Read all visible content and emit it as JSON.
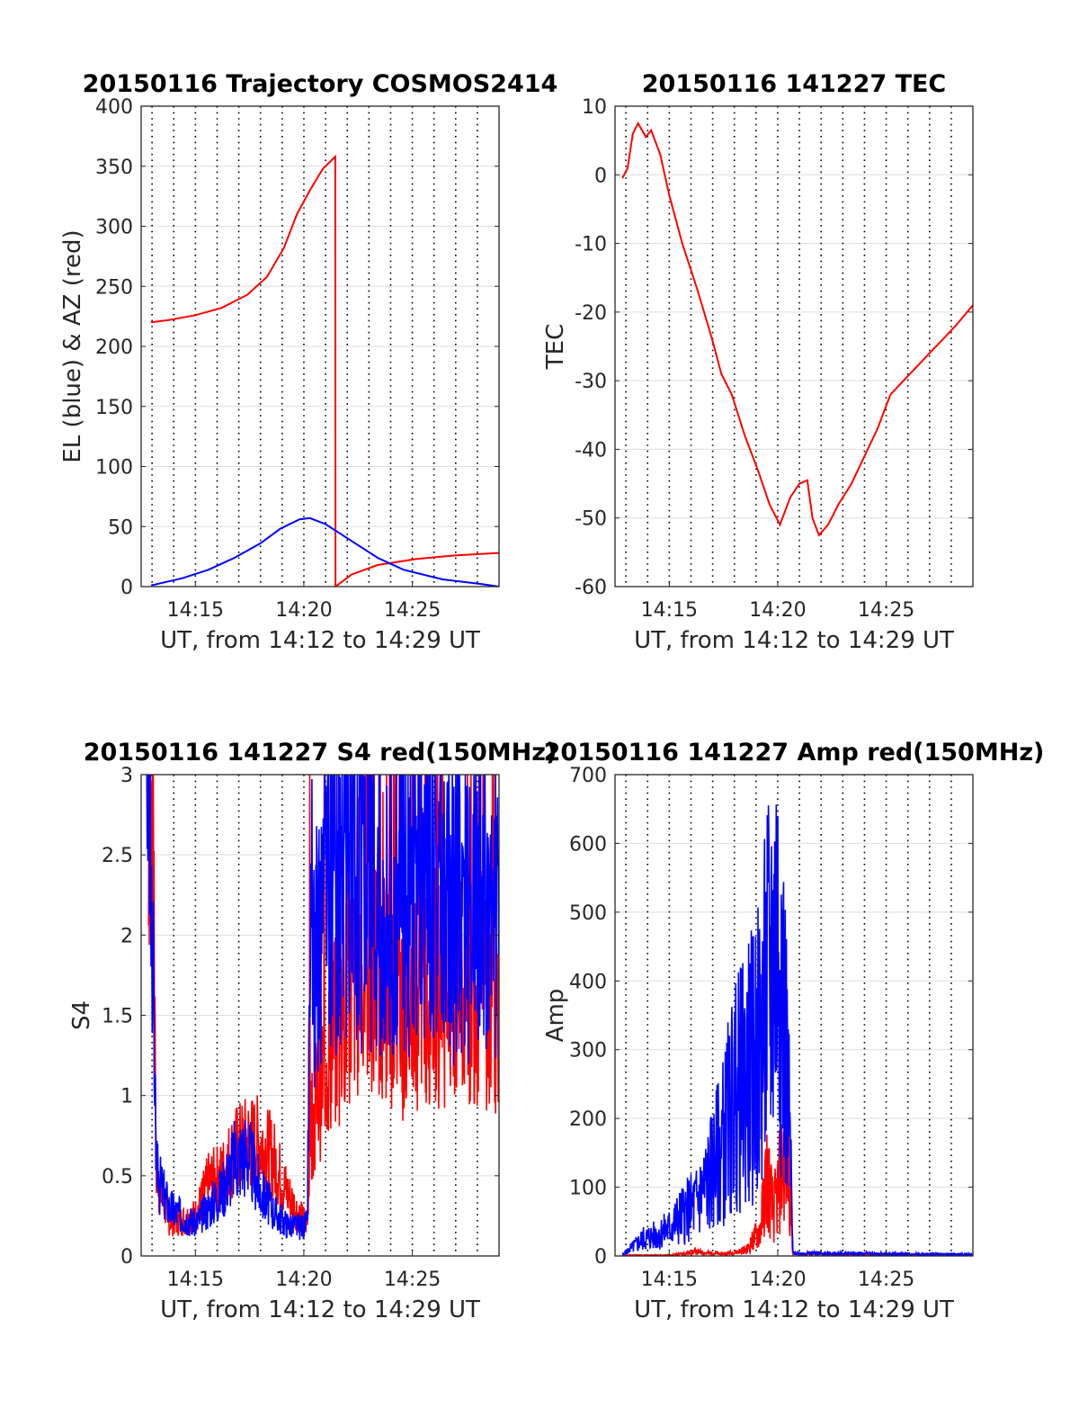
{
  "colors": {
    "red": "#ff0000",
    "blue": "#0000ff",
    "grid": "#dddddd",
    "vgrid": "#000000",
    "axis": "#262626"
  },
  "chart_data": [
    {
      "type": "line",
      "title": "20150116 Trajectory COSMOS2414",
      "xlabel": "UT, from 14:12 to 14:29 UT",
      "ylabel": "EL (blue) & AZ (red)",
      "xlim": [
        14.2083,
        14.4833
      ],
      "ylim": [
        0,
        400
      ],
      "yticks": [
        0,
        50,
        100,
        150,
        200,
        250,
        300,
        350,
        400
      ],
      "xticks": [
        {
          "value": 14.25,
          "label": "14:15"
        },
        {
          "value": 14.3333,
          "label": "14:20"
        },
        {
          "value": 14.4167,
          "label": "14:25"
        }
      ],
      "grid": "on",
      "series": [
        {
          "color": "red",
          "kind": "smooth",
          "points": [
            [
              14.216,
              220
            ],
            [
              14.23,
              222
            ],
            [
              14.25,
              226
            ],
            [
              14.27,
              232
            ],
            [
              14.29,
              243
            ],
            [
              14.305,
              258
            ],
            [
              14.318,
              282
            ],
            [
              14.328,
              310
            ],
            [
              14.338,
              330
            ],
            [
              14.348,
              348
            ],
            [
              14.3575,
              358
            ],
            [
              14.3576,
              0
            ],
            [
              14.37,
              10
            ],
            [
              14.39,
              18
            ],
            [
              14.42,
              23
            ],
            [
              14.45,
              26
            ],
            [
              14.4833,
              28
            ]
          ]
        },
        {
          "color": "blue",
          "kind": "smooth",
          "points": [
            [
              14.216,
              1
            ],
            [
              14.24,
              7
            ],
            [
              14.26,
              14
            ],
            [
              14.28,
              24
            ],
            [
              14.3,
              36
            ],
            [
              14.315,
              48
            ],
            [
              14.33,
              56
            ],
            [
              14.338,
              57
            ],
            [
              14.35,
              52
            ],
            [
              14.37,
              38
            ],
            [
              14.39,
              24
            ],
            [
              14.41,
              14
            ],
            [
              14.44,
              6
            ],
            [
              14.47,
              2
            ],
            [
              14.4833,
              0
            ]
          ]
        }
      ]
    },
    {
      "type": "line",
      "title": "20150116 141227 TEC",
      "xlabel": "UT, from 14:12 to 14:29 UT",
      "ylabel": "TEC",
      "xlim": [
        14.2083,
        14.4833
      ],
      "ylim": [
        -60,
        10
      ],
      "yticks": [
        -60,
        -50,
        -40,
        -30,
        -20,
        -10,
        0,
        10
      ],
      "xticks": [
        {
          "value": 14.25,
          "label": "14:15"
        },
        {
          "value": 14.3333,
          "label": "14:20"
        },
        {
          "value": 14.4167,
          "label": "14:25"
        }
      ],
      "grid": "on",
      "series": [
        {
          "color": "red",
          "kind": "smooth",
          "points": [
            [
              14.214,
              -0.5
            ],
            [
              14.218,
              1
            ],
            [
              14.222,
              6
            ],
            [
              14.226,
              7.5
            ],
            [
              14.232,
              5.5
            ],
            [
              14.236,
              6.5
            ],
            [
              14.243,
              3
            ],
            [
              14.25,
              -3
            ],
            [
              14.26,
              -10
            ],
            [
              14.272,
              -17
            ],
            [
              14.283,
              -24
            ],
            [
              14.29,
              -29
            ],
            [
              14.298,
              -32
            ],
            [
              14.308,
              -38
            ],
            [
              14.318,
              -43
            ],
            [
              14.327,
              -48
            ],
            [
              14.335,
              -51
            ],
            [
              14.343,
              -47
            ],
            [
              14.35,
              -45
            ],
            [
              14.356,
              -44.5
            ],
            [
              14.36,
              -50
            ],
            [
              14.365,
              -52.5
            ],
            [
              14.372,
              -51
            ],
            [
              14.38,
              -48
            ],
            [
              14.39,
              -45
            ],
            [
              14.4,
              -41
            ],
            [
              14.41,
              -37
            ],
            [
              14.42,
              -32
            ],
            [
              14.43,
              -30
            ],
            [
              14.44,
              -28
            ],
            [
              14.45,
              -26
            ],
            [
              14.46,
              -24
            ],
            [
              14.47,
              -22
            ],
            [
              14.4833,
              -19
            ]
          ]
        }
      ]
    },
    {
      "type": "line",
      "title": "20150116 141227 S4 red(150MHz)",
      "xlabel": "UT, from 14:12 to 14:29 UT",
      "ylabel": "S4",
      "xlim": [
        14.2083,
        14.4833
      ],
      "ylim": [
        0,
        3
      ],
      "yticks": [
        0,
        0.5,
        1,
        1.5,
        2,
        2.5,
        3
      ],
      "ytick_labels": [
        "0",
        "0.5",
        "1",
        "1.5",
        "2",
        "2.5",
        "3"
      ],
      "xticks": [
        {
          "value": 14.25,
          "label": "14:15"
        },
        {
          "value": 14.3333,
          "label": "14:20"
        },
        {
          "value": 14.4167,
          "label": "14:25"
        }
      ],
      "grid": "on",
      "series": [
        {
          "color": "red",
          "kind": "noisy",
          "seed": 7,
          "points": [
            [
              14.214,
              2.6
            ],
            [
              14.218,
              2.2
            ],
            [
              14.22,
              0.5
            ],
            [
              14.23,
              0.22
            ],
            [
              14.24,
              0.22
            ],
            [
              14.25,
              0.25
            ],
            [
              14.26,
              0.45
            ],
            [
              14.27,
              0.5
            ],
            [
              14.28,
              0.65
            ],
            [
              14.29,
              0.7
            ],
            [
              14.3,
              0.7
            ],
            [
              14.31,
              0.6
            ],
            [
              14.32,
              0.4
            ],
            [
              14.33,
              0.25
            ],
            [
              14.336,
              0.2
            ],
            [
              14.338,
              0.8
            ],
            [
              14.35,
              1.2
            ],
            [
              14.37,
              1.7
            ],
            [
              14.39,
              1.8
            ],
            [
              14.41,
              1.5
            ],
            [
              14.43,
              1.7
            ],
            [
              14.45,
              1.6
            ],
            [
              14.47,
              1.7
            ],
            [
              14.4833,
              1.5
            ]
          ]
        },
        {
          "color": "blue",
          "kind": "noisy",
          "seed": 3,
          "points": [
            [
              14.212,
              2.6
            ],
            [
              14.216,
              2.3
            ],
            [
              14.22,
              0.5
            ],
            [
              14.23,
              0.3
            ],
            [
              14.24,
              0.25
            ],
            [
              14.25,
              0.2
            ],
            [
              14.26,
              0.3
            ],
            [
              14.27,
              0.4
            ],
            [
              14.28,
              0.6
            ],
            [
              14.29,
              0.65
            ],
            [
              14.3,
              0.4
            ],
            [
              14.31,
              0.28
            ],
            [
              14.32,
              0.2
            ],
            [
              14.33,
              0.18
            ],
            [
              14.336,
              0.2
            ],
            [
              14.338,
              1.7
            ],
            [
              14.35,
              2.2
            ],
            [
              14.37,
              2.3
            ],
            [
              14.39,
              2.2
            ],
            [
              14.41,
              2.2
            ],
            [
              14.43,
              2.4
            ],
            [
              14.45,
              2.1
            ],
            [
              14.47,
              2.1
            ],
            [
              14.4833,
              2.0
            ]
          ]
        }
      ]
    },
    {
      "type": "line",
      "title": "20150116 141227 Amp red(150MHz)",
      "xlabel": "UT, from 14:12 to 14:29 UT",
      "ylabel": "Amp",
      "xlim": [
        14.2083,
        14.4833
      ],
      "ylim": [
        0,
        700
      ],
      "yticks": [
        0,
        100,
        200,
        300,
        400,
        500,
        600,
        700
      ],
      "xticks": [
        {
          "value": 14.25,
          "label": "14:15"
        },
        {
          "value": 14.3333,
          "label": "14:20"
        },
        {
          "value": 14.4167,
          "label": "14:25"
        }
      ],
      "grid": "on",
      "series": [
        {
          "color": "red",
          "kind": "noisy",
          "seed": 11,
          "points": [
            [
              14.214,
              1
            ],
            [
              14.25,
              1
            ],
            [
              14.26,
              3
            ],
            [
              14.27,
              6
            ],
            [
              14.28,
              4
            ],
            [
              14.29,
              3
            ],
            [
              14.3,
              5
            ],
            [
              14.31,
              10
            ],
            [
              14.32,
              40
            ],
            [
              14.325,
              120
            ],
            [
              14.33,
              60
            ],
            [
              14.335,
              110
            ],
            [
              14.34,
              160
            ],
            [
              14.343,
              100
            ],
            [
              14.345,
              3
            ],
            [
              14.4833,
              1
            ]
          ]
        },
        {
          "color": "blue",
          "kind": "noisy",
          "seed": 5,
          "points": [
            [
              14.214,
              2
            ],
            [
              14.22,
              10
            ],
            [
              14.23,
              25
            ],
            [
              14.24,
              30
            ],
            [
              14.25,
              40
            ],
            [
              14.26,
              60
            ],
            [
              14.27,
              75
            ],
            [
              14.28,
              110
            ],
            [
              14.29,
              160
            ],
            [
              14.3,
              230
            ],
            [
              14.31,
              260
            ],
            [
              14.32,
              300
            ],
            [
              14.328,
              420
            ],
            [
              14.335,
              480
            ],
            [
              14.34,
              280
            ],
            [
              14.343,
              150
            ],
            [
              14.345,
              4
            ],
            [
              14.4833,
              2
            ]
          ]
        }
      ]
    }
  ]
}
